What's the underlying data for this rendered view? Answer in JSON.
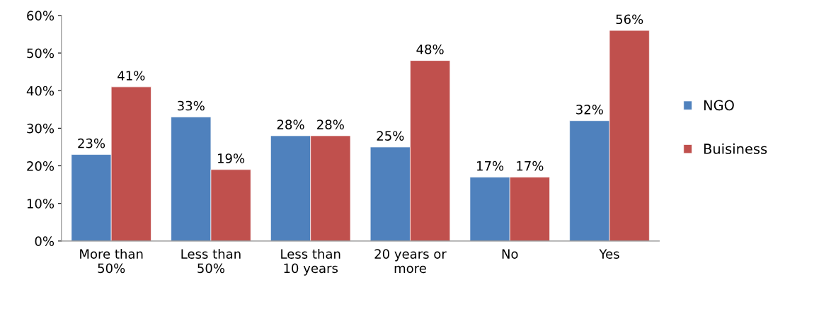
{
  "chart_data": {
    "type": "bar",
    "categories": [
      "More than\n50%",
      "Less than\n50%",
      "Less than\n10 years",
      "20 years or\nmore",
      "No",
      "Yes"
    ],
    "series": [
      {
        "name": "NGO",
        "color": "#4f81bd",
        "values": [
          23,
          33,
          28,
          25,
          17,
          32
        ],
        "value_labels": [
          "23%",
          "33%",
          "28%",
          "25%",
          "17%",
          "32%"
        ]
      },
      {
        "name": "Buisiness",
        "color": "#c0504d",
        "values": [
          41,
          19,
          28,
          48,
          17,
          56
        ],
        "value_labels": [
          "41%",
          "19%",
          "28%",
          "48%",
          "17%",
          "56%"
        ]
      }
    ],
    "ylim": [
      0,
      60
    ],
    "yticks": [
      {
        "value": 0,
        "label": "0%"
      },
      {
        "value": 10,
        "label": "10%"
      },
      {
        "value": 20,
        "label": "20%"
      },
      {
        "value": 30,
        "label": "30%"
      },
      {
        "value": 40,
        "label": "40%"
      },
      {
        "value": 50,
        "label": "50%"
      },
      {
        "value": 60,
        "label": "60%"
      }
    ],
    "grid": false,
    "legend": "right"
  }
}
